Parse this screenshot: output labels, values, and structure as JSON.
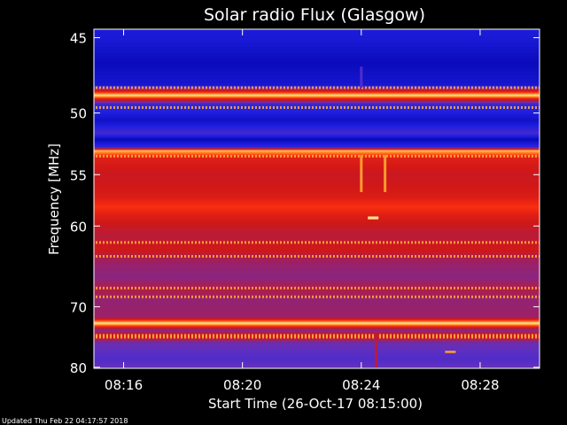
{
  "chart_data": {
    "type": "heatmap",
    "title": "Solar radio Flux (Glasgow)",
    "xlabel": "Start Time (26-Oct-17 08:15:00)",
    "ylabel": "Frequency [MHz]",
    "x_ticks": [
      "08:16",
      "08:20",
      "08:24",
      "08:28"
    ],
    "x_tick_minutes": [
      1,
      5,
      9,
      13
    ],
    "x_range_minutes": [
      0,
      15
    ],
    "y_ticks": [
      45,
      50,
      55,
      60,
      70,
      80
    ],
    "y_range": [
      44.5,
      80.2
    ],
    "y_scale": "reciprocal",
    "colormap": [
      "#0000a8",
      "#2020e0",
      "#6030c0",
      "#a02060",
      "#d01818",
      "#ff3010",
      "#ffa030",
      "#ffffc0"
    ],
    "band_intensity": [
      {
        "f": 45.0,
        "v": 0.12
      },
      {
        "f": 46.5,
        "v": 0.05
      },
      {
        "f": 48.0,
        "v": 0.1
      },
      {
        "f": 48.7,
        "v": 0.96
      },
      {
        "f": 49.3,
        "v": 0.2
      },
      {
        "f": 50.5,
        "v": 0.08
      },
      {
        "f": 51.5,
        "v": 0.22
      },
      {
        "f": 52.0,
        "v": 0.04
      },
      {
        "f": 52.6,
        "v": 0.18
      },
      {
        "f": 52.9,
        "v": 0.9
      },
      {
        "f": 53.5,
        "v": 0.62
      },
      {
        "f": 55.0,
        "v": 0.55
      },
      {
        "f": 57.0,
        "v": 0.6
      },
      {
        "f": 58.0,
        "v": 0.7
      },
      {
        "f": 59.0,
        "v": 0.6
      },
      {
        "f": 61.0,
        "v": 0.5
      },
      {
        "f": 62.5,
        "v": 0.58
      },
      {
        "f": 64.0,
        "v": 0.42
      },
      {
        "f": 66.0,
        "v": 0.38
      },
      {
        "f": 67.5,
        "v": 0.48
      },
      {
        "f": 69.0,
        "v": 0.4
      },
      {
        "f": 71.5,
        "v": 0.42
      },
      {
        "f": 72.4,
        "v": 0.97
      },
      {
        "f": 73.5,
        "v": 0.35
      },
      {
        "f": 74.4,
        "v": 0.62
      },
      {
        "f": 75.5,
        "v": 0.32
      },
      {
        "f": 77.0,
        "v": 0.28
      },
      {
        "f": 78.5,
        "v": 0.25
      },
      {
        "f": 80.0,
        "v": 0.3
      }
    ],
    "dotted_lines_mhz": [
      48.2,
      49.6,
      53.4,
      61.8,
      63.4,
      67.4,
      68.6,
      74.4,
      74.7
    ],
    "bursts": [
      {
        "t_min": 9.0,
        "f0": 46.8,
        "f1": 48.2,
        "v": 0.25
      },
      {
        "t_min": 9.0,
        "f0": 53.3,
        "f1": 56.6,
        "v": 0.85
      },
      {
        "t_min": 9.8,
        "f0": 53.3,
        "f1": 56.6,
        "v": 0.85
      },
      {
        "t_min": 9.4,
        "f0": 59.0,
        "f1": 59.3,
        "v": 0.95
      },
      {
        "t_min": 9.5,
        "f0": 73.8,
        "f1": 80.0,
        "v": 0.5
      },
      {
        "t_min": 12.0,
        "f0": 77.0,
        "f1": 77.4,
        "v": 0.85
      }
    ],
    "grid": false
  },
  "footer": {
    "updated": "Updated Thu Feb 22 04:17:57 2018"
  }
}
